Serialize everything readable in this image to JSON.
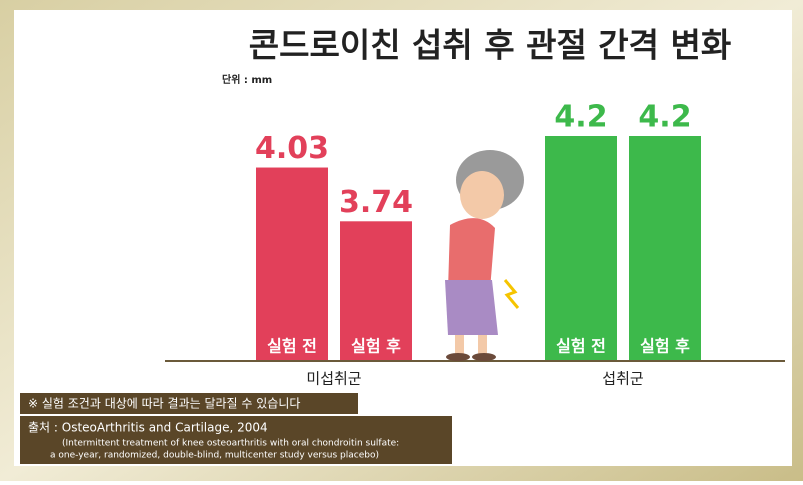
{
  "chart_data": {
    "type": "bar",
    "title": "콘드로이친 섭취 후 관절 간격 변화",
    "subtitle": "단위 : mm",
    "categories": [
      "미섭취군",
      "섭취군"
    ],
    "category_colors": [
      "#e2405a",
      "#3db94b"
    ],
    "series": [
      {
        "name": "실험 전",
        "values": [
          4.03,
          4.2
        ]
      },
      {
        "name": "실험 후",
        "values": [
          3.74,
          4.2
        ]
      }
    ]
  },
  "notes": {
    "disclaimer": "※ 실험 조건과 대상에 따라 결과는 달라질 수 있습니다",
    "source": "출처 : OsteoArthritis and Cartilage, 2004",
    "reference_lines": [
      "(Intermittent treatment of knee osteoarthritis with oral chondroitin sulfate:",
      "a one-year, randomized, double-blind, multicenter study versus placebo)"
    ]
  }
}
